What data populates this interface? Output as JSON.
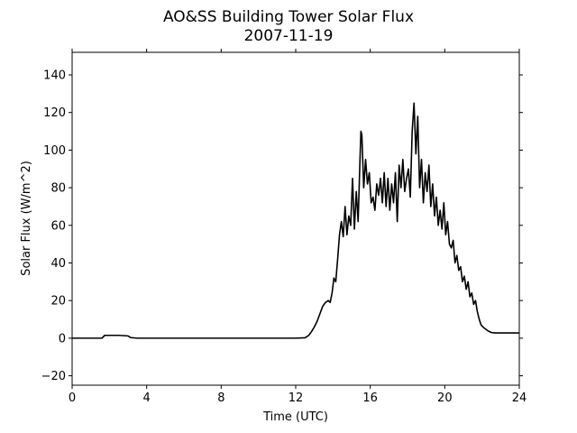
{
  "chart_data": {
    "type": "line",
    "title": "AO&SS Building Tower Solar Flux",
    "subtitle": "2007-11-19",
    "xlabel": "Time (UTC)",
    "ylabel": "Solar Flux (W/m^2)",
    "xlim": [
      0,
      24
    ],
    "ylim": [
      -25,
      152
    ],
    "xticks": [
      0,
      4,
      8,
      12,
      16,
      20,
      24
    ],
    "yticks": [
      -20,
      0,
      20,
      40,
      60,
      80,
      100,
      120,
      140
    ],
    "grid": false,
    "legend": "none",
    "line_color": "#000000",
    "series": [
      {
        "x": [
          0,
          1.6,
          1.75,
          2.5,
          3.0,
          3.15,
          3.5,
          4,
          6,
          8,
          10,
          12,
          12.5,
          12.7,
          12.85,
          13.0,
          13.15,
          13.3,
          13.45,
          13.6,
          13.75,
          13.85,
          13.95,
          14.05,
          14.15,
          14.25,
          14.35,
          14.45,
          14.55,
          14.65,
          14.75,
          14.85,
          14.95,
          15.05,
          15.15,
          15.25,
          15.35,
          15.45,
          15.5,
          15.55,
          15.65,
          15.75,
          15.85,
          15.95,
          16.05,
          16.15,
          16.25,
          16.35,
          16.45,
          16.55,
          16.65,
          16.75,
          16.85,
          16.95,
          17.05,
          17.15,
          17.25,
          17.35,
          17.45,
          17.55,
          17.65,
          17.75,
          17.85,
          17.95,
          18.05,
          18.15,
          18.25,
          18.35,
          18.45,
          18.55,
          18.65,
          18.75,
          18.85,
          18.95,
          19.05,
          19.15,
          19.25,
          19.35,
          19.45,
          19.55,
          19.65,
          19.75,
          19.85,
          19.95,
          20.05,
          20.15,
          20.25,
          20.35,
          20.45,
          20.55,
          20.65,
          20.75,
          20.85,
          20.95,
          21.05,
          21.15,
          21.25,
          21.35,
          21.45,
          21.55,
          21.65,
          21.75,
          21.85,
          21.95,
          22.1,
          22.3,
          22.5,
          22.7,
          23.0,
          23.5,
          24
        ],
        "y": [
          0,
          0,
          1.5,
          1.5,
          1.2,
          0.3,
          0,
          0,
          0,
          0,
          0,
          0,
          0.2,
          1.5,
          3.5,
          6,
          9,
          13,
          17,
          19,
          20,
          19,
          24,
          32,
          30,
          42,
          55,
          62,
          54,
          70,
          55,
          65,
          60,
          85,
          58,
          78,
          62,
          95,
          110,
          108,
          80,
          95,
          82,
          88,
          72,
          75,
          68,
          82,
          76,
          85,
          72,
          88,
          70,
          85,
          68,
          82,
          72,
          88,
          62,
          92,
          80,
          95,
          78,
          85,
          90,
          75,
          110,
          125,
          98,
          118,
          80,
          95,
          72,
          88,
          78,
          92,
          70,
          82,
          65,
          75,
          60,
          68,
          58,
          72,
          55,
          62,
          50,
          48,
          52,
          40,
          44,
          36,
          38,
          30,
          33,
          26,
          30,
          22,
          24,
          18,
          20,
          14,
          10,
          7,
          5.5,
          4,
          3,
          2.8,
          2.8,
          2.8,
          2.8
        ]
      }
    ]
  }
}
